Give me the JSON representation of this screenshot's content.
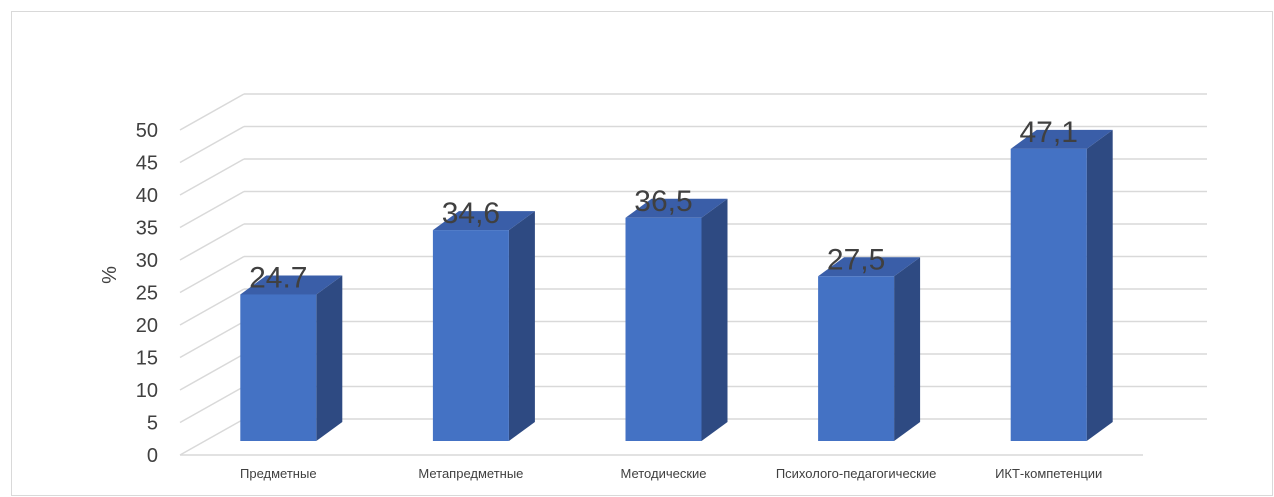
{
  "chart_data": {
    "type": "bar",
    "categories": [
      "Предметные",
      "Метапредметные",
      "Методические",
      "Психолого-педагогические",
      "ИКТ-компетенции"
    ],
    "values": [
      24.7,
      34.6,
      36.5,
      27.5,
      47.1
    ],
    "value_labels": [
      "24.7",
      "34,6",
      "36,5",
      "27,5",
      "47,1"
    ],
    "title": "",
    "xlabel": "",
    "ylabel": "%",
    "ylim": [
      0,
      50
    ],
    "yticks": [
      0,
      5,
      10,
      15,
      20,
      25,
      30,
      35,
      40,
      45,
      50
    ],
    "grid": true,
    "style": "3d-column",
    "colors": {
      "bar_front": "#4472c4",
      "bar_side": "#2e4a82",
      "bar_top": "#3a5ea8",
      "grid": "#d9d9d9",
      "text": "#404040"
    }
  }
}
